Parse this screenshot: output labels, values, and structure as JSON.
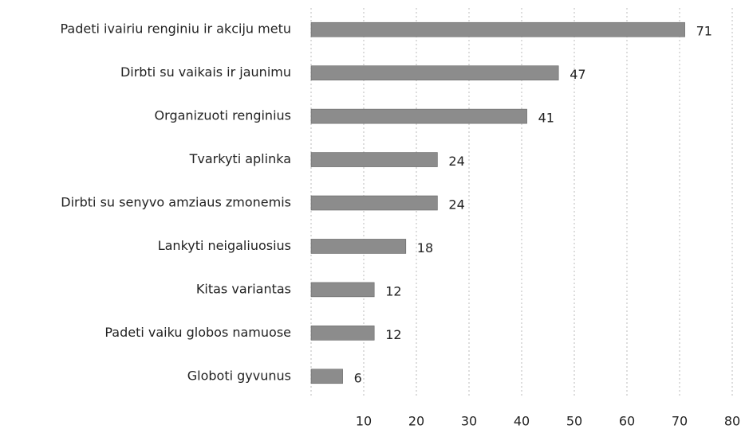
{
  "chart_data": {
    "type": "barh",
    "categories": [
      "Padeti ivairiu renginiu ir akciju metu",
      "Dirbti su vaikais ir jaunimu",
      "Organizuoti renginius",
      "Tvarkyti aplinka",
      "Dirbti su senyvo amziaus zmonemis",
      "Lankyti neigaliuosius",
      "Kitas variantas",
      "Padeti vaiku globos namuose",
      "Globoti gyvunus"
    ],
    "values": [
      71,
      47,
      41,
      24,
      24,
      18,
      12,
      12,
      6
    ],
    "color": "#8c8c8c",
    "xlim": [
      0,
      80
    ],
    "xticks": [
      10,
      20,
      30,
      40,
      50,
      60,
      70,
      80
    ],
    "grid": true
  }
}
